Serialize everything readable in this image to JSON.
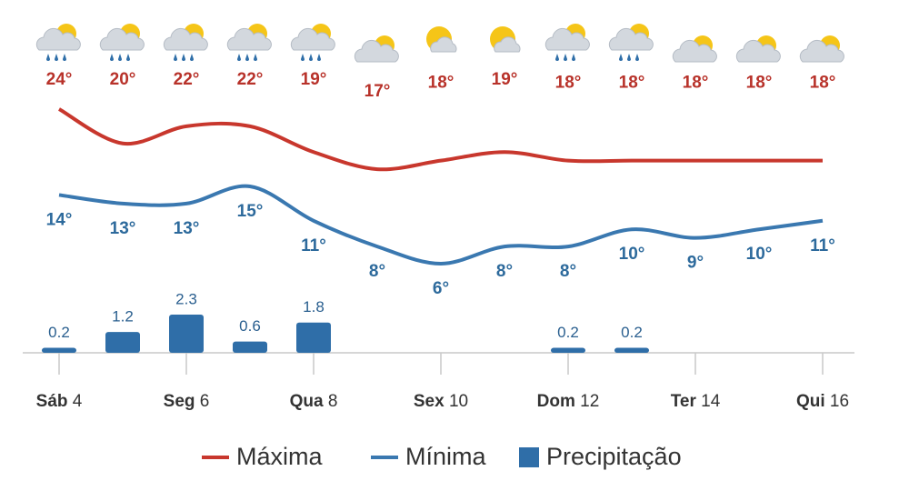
{
  "chart_data": {
    "type": "line",
    "categories": [
      "Sáb 4",
      null,
      "Seg 6",
      null,
      "Qua 8",
      null,
      "Sex 10",
      null,
      "Dom 12",
      null,
      "Ter 14",
      null,
      "Qui 16"
    ],
    "series": [
      {
        "name": "Máxima",
        "type": "line",
        "color": "#c8372d",
        "values": [
          24,
          20,
          22,
          22,
          19,
          17,
          18,
          19,
          18,
          18,
          18,
          18,
          18
        ],
        "value_labels": [
          "24°",
          "20°",
          "22°",
          "22°",
          "19°",
          "17°",
          "18°",
          "19°",
          "18°",
          "18°",
          "18°",
          "18°",
          "18°"
        ]
      },
      {
        "name": "Mínima",
        "type": "line",
        "color": "#3a78b0",
        "values": [
          14,
          13,
          13,
          15,
          11,
          8,
          6,
          8,
          8,
          10,
          9,
          10,
          11
        ],
        "value_labels": [
          "14°",
          "13°",
          "13°",
          "15°",
          "11°",
          "8°",
          "6°",
          "8°",
          "8°",
          "10°",
          "9°",
          "10°",
          "11°"
        ]
      },
      {
        "name": "Precipitação",
        "type": "bar",
        "color": "#2f6ea8",
        "values": [
          0.2,
          1.2,
          2.3,
          0.6,
          1.8,
          null,
          null,
          null,
          0.2,
          0.2,
          null,
          null,
          null
        ]
      }
    ]
  }
}
